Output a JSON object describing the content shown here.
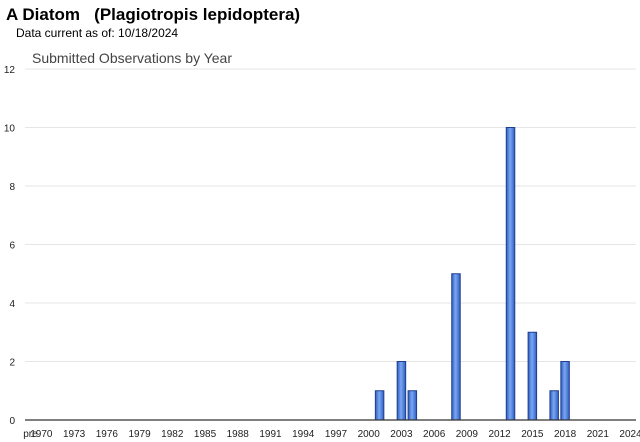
{
  "header": {
    "title": "A Diatom   (Plagiotropis lepidoptera)",
    "subtitle": "Data current as of: 10/18/2024"
  },
  "chart_data": {
    "type": "bar",
    "title": "Submitted Observations by Year",
    "xlabel": "",
    "ylabel": "",
    "ylim": [
      0,
      12
    ],
    "yticks": [
      0,
      2,
      4,
      6,
      8,
      10,
      12
    ],
    "grid": true,
    "legend": "none",
    "categories": [
      "pre",
      "1970",
      "1971",
      "1972",
      "1973",
      "1974",
      "1975",
      "1976",
      "1977",
      "1978",
      "1979",
      "1980",
      "1981",
      "1982",
      "1983",
      "1984",
      "1985",
      "1986",
      "1987",
      "1988",
      "1989",
      "1990",
      "1991",
      "1992",
      "1993",
      "1994",
      "1995",
      "1996",
      "1997",
      "1998",
      "1999",
      "2000",
      "2001",
      "2002",
      "2003",
      "2004",
      "2005",
      "2006",
      "2007",
      "2008",
      "2009",
      "2010",
      "2011",
      "2012",
      "2013",
      "2014",
      "2015",
      "2016",
      "2017",
      "2018",
      "2019",
      "2020",
      "2021",
      "2022",
      "2023",
      "2024"
    ],
    "tick_labels": [
      "pre",
      "1970",
      "",
      "",
      "1973",
      "",
      "",
      "1976",
      "",
      "",
      "1979",
      "",
      "",
      "1982",
      "",
      "",
      "1985",
      "",
      "",
      "1988",
      "",
      "",
      "1991",
      "",
      "",
      "1994",
      "",
      "",
      "1997",
      "",
      "",
      "2000",
      "",
      "",
      "2003",
      "",
      "",
      "2006",
      "",
      "",
      "2009",
      "",
      "",
      "2012",
      "",
      "",
      "2015",
      "",
      "",
      "2018",
      "",
      "",
      "2021",
      "",
      "",
      "2024"
    ],
    "values": [
      0,
      0,
      0,
      0,
      0,
      0,
      0,
      0,
      0,
      0,
      0,
      0,
      0,
      0,
      0,
      0,
      0,
      0,
      0,
      0,
      0,
      0,
      0,
      0,
      0,
      0,
      0,
      0,
      0,
      0,
      0,
      0,
      1,
      0,
      2,
      1,
      0,
      0,
      0,
      5,
      0,
      0,
      0,
      0,
      10,
      0,
      3,
      0,
      1,
      2,
      0,
      0,
      0,
      0,
      0,
      0
    ],
    "colors": {
      "bar_fill": "#4a7fe0",
      "bar_stroke": "#1f3f8f",
      "grid": "#e6e6e6",
      "axis": "#333333"
    }
  }
}
